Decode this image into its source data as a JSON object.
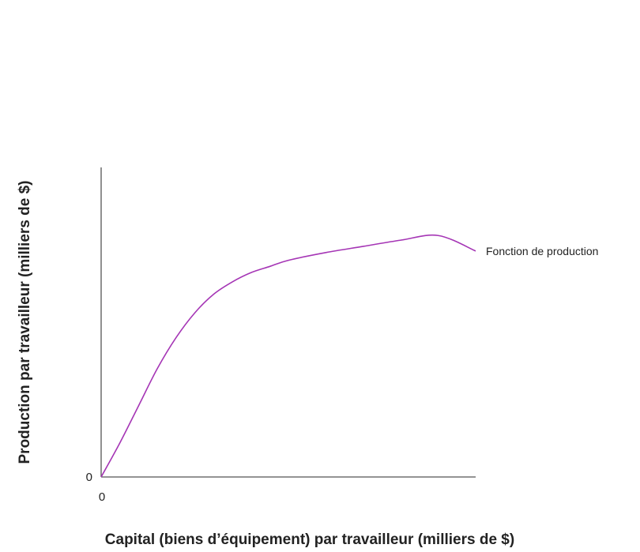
{
  "chart_data": {
    "type": "line",
    "title": "",
    "xlabel": "Capital (biens d’équipement) par travailleur (milliers de $)",
    "ylabel": "Production par travailleur (milliers de $)",
    "x_ticks": [
      "0"
    ],
    "y_ticks": [
      "0"
    ],
    "xlim": [
      0,
      100
    ],
    "ylim": [
      0,
      100
    ],
    "grid": false,
    "series": [
      {
        "name": "Fonction de production",
        "color": "#a535b5",
        "x": [
          0,
          5,
          10,
          15,
          20,
          25,
          30,
          35,
          40,
          45,
          50,
          60,
          70,
          80,
          90,
          100
        ],
        "y": [
          0,
          11,
          23,
          35,
          45,
          53,
          59,
          63,
          66,
          68,
          70,
          72.5,
          74.5,
          76.5,
          78,
          73
        ]
      }
    ]
  }
}
